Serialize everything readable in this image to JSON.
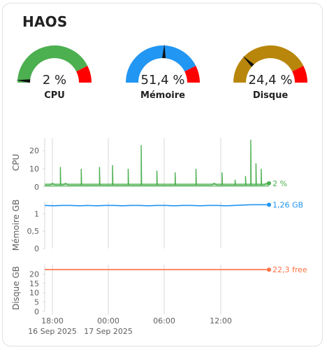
{
  "card": {
    "title": "HAOS"
  },
  "gauges": [
    {
      "id": "cpu",
      "value_text": "2 %",
      "label": "CPU",
      "value_pct": 2,
      "severity_start_pct": 85,
      "color": "#4caf50",
      "severity_color": "#ff0000"
    },
    {
      "id": "memory",
      "value_text": "51,4 %",
      "label": "Mémoire",
      "value_pct": 51.4,
      "severity_start_pct": 85,
      "color": "#2196f3",
      "severity_color": "#ff0000"
    },
    {
      "id": "disk",
      "value_text": "24,4 %",
      "label": "Disque",
      "value_pct": 24.4,
      "severity_start_pct": 85,
      "color": "#b8860b",
      "severity_color": "#ff0000"
    }
  ],
  "chart_data": [
    {
      "type": "line",
      "ylabel": "CPU",
      "ylim": [
        0,
        27
      ],
      "yticks": [
        "0",
        "10",
        "20"
      ],
      "ytick_values": [
        0,
        10,
        20
      ],
      "series": [
        {
          "values": [
            1,
            1,
            1,
            2,
            1,
            1,
            11,
            1,
            2,
            1,
            1,
            1,
            1,
            1,
            10,
            1,
            1,
            1,
            1,
            1,
            1,
            11,
            1,
            1,
            1,
            1,
            12,
            1,
            1,
            1,
            1,
            1,
            10,
            1,
            1,
            1,
            1,
            23,
            1,
            1,
            1,
            1,
            1,
            9,
            1,
            1,
            1,
            1,
            1,
            1,
            8,
            1,
            1,
            1,
            1,
            1,
            1,
            1,
            10,
            1,
            1,
            1,
            1,
            1,
            1,
            2,
            1,
            1,
            8,
            1,
            1,
            1,
            1,
            4,
            1,
            1,
            1,
            6,
            1,
            26,
            1,
            13,
            1,
            10,
            1,
            2,
            2
          ],
          "color": "#4caf50"
        }
      ],
      "end_label": "2 %",
      "end_value": 2
    },
    {
      "type": "line",
      "ylabel": "Mémoire GB",
      "ylim": [
        0,
        1.35
      ],
      "yticks": [
        "0",
        "0,5",
        "1"
      ],
      "ytick_values": [
        0,
        0.5,
        1
      ],
      "series": [
        {
          "values": [
            1.24,
            1.23,
            1.24,
            1.24,
            1.23,
            1.24,
            1.23,
            1.24,
            1.24,
            1.23,
            1.24,
            1.24,
            1.23,
            1.24,
            1.24,
            1.23,
            1.24,
            1.24,
            1.23,
            1.24,
            1.24,
            1.23,
            1.24,
            1.25,
            1.26,
            1.26,
            1.26
          ],
          "color": "#2196f3"
        }
      ],
      "end_label": "1,26 GB",
      "end_value": 1.26
    },
    {
      "type": "line",
      "ylabel": "Disque GB",
      "ylim": [
        0,
        25
      ],
      "yticks": [
        "0",
        "5",
        "10",
        "15",
        "20"
      ],
      "ytick_values": [
        0,
        5,
        10,
        15,
        20
      ],
      "series": [
        {
          "values": [
            22.3,
            22.3
          ],
          "color": "#ff7043"
        }
      ],
      "end_label": "22,3 free",
      "end_value": 22.3
    }
  ],
  "x_axis": {
    "ticks": [
      {
        "time": "18:00",
        "date": "16 Sep 2025"
      },
      {
        "time": "00:00",
        "date": "17 Sep 2025"
      },
      {
        "time": "06:00",
        "date": ""
      },
      {
        "time": "12:00",
        "date": ""
      }
    ]
  }
}
